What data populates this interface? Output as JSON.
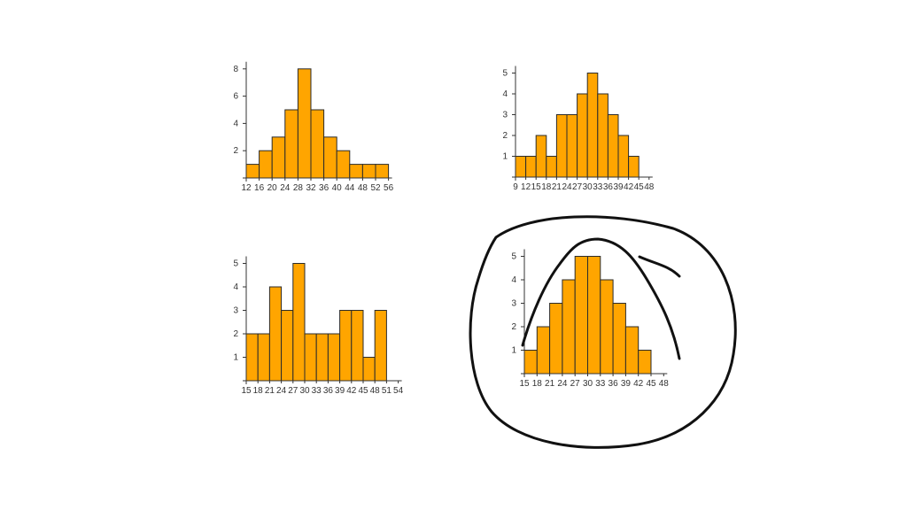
{
  "colors": {
    "bar_fill": "#ffa500",
    "bar_stroke": "#2b2b2b",
    "axis": "#333333",
    "ink": "#111111",
    "background": "#ffffff"
  },
  "annotation": {
    "type": "hand-drawn-circle",
    "target_chart_index": 3
  },
  "chart_data": [
    {
      "type": "bar",
      "histogram": true,
      "x_ticks": [
        12,
        16,
        20,
        24,
        28,
        32,
        36,
        40,
        44,
        48,
        52,
        56
      ],
      "y_ticks": [
        2,
        4,
        6,
        8
      ],
      "values": [
        1,
        2,
        3,
        5,
        8,
        5,
        3,
        2,
        1,
        1,
        1
      ],
      "ylim": [
        0,
        8
      ],
      "title": "",
      "xlabel": "",
      "ylabel": "",
      "grid": false
    },
    {
      "type": "bar",
      "histogram": true,
      "x_ticks": [
        9,
        12,
        15,
        18,
        21,
        24,
        27,
        30,
        33,
        36,
        39,
        42,
        45,
        48
      ],
      "y_ticks": [
        1,
        2,
        3,
        4,
        5
      ],
      "values": [
        1,
        1,
        2,
        1,
        3,
        3,
        4,
        5,
        4,
        3,
        2,
        1
      ],
      "ylim": [
        0,
        5
      ],
      "title": "",
      "xlabel": "",
      "ylabel": "",
      "grid": false
    },
    {
      "type": "bar",
      "histogram": true,
      "x_ticks": [
        15,
        18,
        21,
        24,
        27,
        30,
        33,
        36,
        39,
        42,
        45,
        48,
        51,
        54
      ],
      "y_ticks": [
        1,
        2,
        3,
        4,
        5
      ],
      "values": [
        2,
        2,
        4,
        3,
        5,
        2,
        2,
        2,
        3,
        3,
        1,
        3
      ],
      "ylim": [
        0,
        5
      ],
      "title": "",
      "xlabel": "",
      "ylabel": "",
      "grid": false
    },
    {
      "type": "bar",
      "histogram": true,
      "x_ticks": [
        15,
        18,
        21,
        24,
        27,
        30,
        33,
        36,
        39,
        42,
        45,
        48
      ],
      "y_ticks": [
        1,
        2,
        3,
        4,
        5
      ],
      "values": [
        1,
        2,
        3,
        4,
        5,
        5,
        4,
        3,
        2,
        1
      ],
      "ylim": [
        0,
        5
      ],
      "title": "",
      "xlabel": "",
      "ylabel": "",
      "grid": false
    }
  ]
}
